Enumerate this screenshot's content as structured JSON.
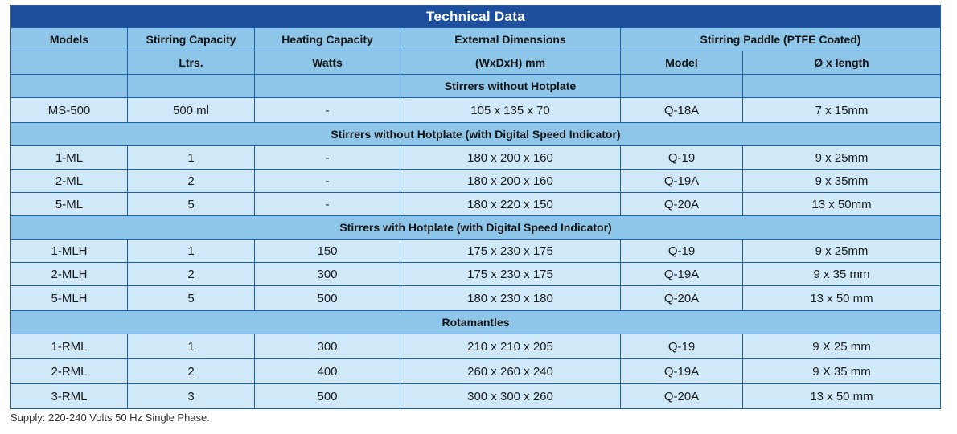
{
  "title": "Technical Data",
  "headers": {
    "row1": [
      "Models",
      "Stirring Capacity",
      "Heating Capacity",
      "External Dimensions",
      "Stirring Paddle (PTFE Coated)"
    ],
    "row2": [
      "",
      "Ltrs.",
      "Watts",
      "(WxDxH) mm",
      "Model",
      "Ø x length"
    ]
  },
  "sections": [
    {
      "title": "Stirrers without Hotplate",
      "rows": [
        [
          "MS-500",
          "500 ml",
          "-",
          "105 x 135 x 70",
          "Q-18A",
          "7 x 15mm"
        ]
      ]
    },
    {
      "title": "Stirrers without Hotplate (with Digital Speed Indicator)",
      "rows": [
        [
          "1-ML",
          "1",
          "-",
          "180 x 200 x 160",
          "Q-19",
          "9 x 25mm"
        ],
        [
          "2-ML",
          "2",
          "-",
          "180 x 200 x 160",
          "Q-19A",
          "9 x 35mm"
        ],
        [
          "5-ML",
          "5",
          "-",
          "180 x 220 x 150",
          "Q-20A",
          "13 x 50mm"
        ]
      ]
    },
    {
      "title": "Stirrers with Hotplate (with Digital Speed Indicator)",
      "rows": [
        [
          "1-MLH",
          "1",
          "150",
          "175 x 230 x 175",
          "Q-19",
          "9 x 25mm"
        ],
        [
          "2-MLH",
          "2",
          "300",
          "175 x 230 x 175",
          "Q-19A",
          "9 x 35 mm"
        ],
        [
          "5-MLH",
          "5",
          "500",
          "180 x 230 x 180",
          "Q-20A",
          "13 x 50 mm"
        ]
      ]
    },
    {
      "title": "Rotamantles",
      "rows": [
        [
          "1-RML",
          "1",
          "300",
          "210 x 210 x 205",
          "Q-19",
          "9 X 25 mm"
        ],
        [
          "2-RML",
          "2",
          "400",
          "260 x 260 x 240",
          "Q-19A",
          "9 X 35 mm"
        ],
        [
          "3-RML",
          "3",
          "500",
          "300 x 300 x 260",
          "Q-20A",
          "13 x 50 mm"
        ]
      ]
    }
  ],
  "footnote": "Supply: 220-240 Volts 50 Hz Single Phase.",
  "colors": {
    "title_bg": "#1d4f9c",
    "header_bg": "#8ec6ea",
    "row_bg": "#cfe9f9",
    "border": "#1f5ea8"
  }
}
